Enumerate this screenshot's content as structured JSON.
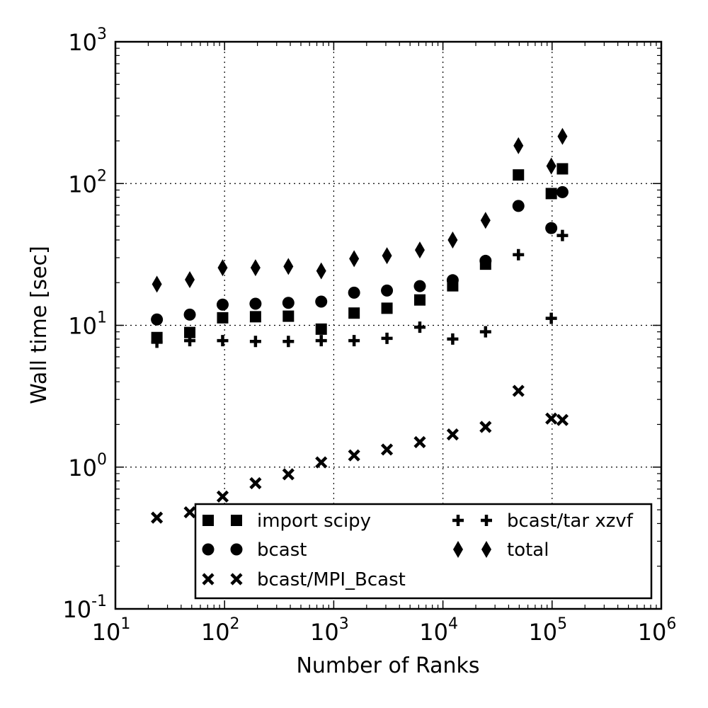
{
  "chart_data": {
    "type": "scatter",
    "xlabel": "Number of Ranks",
    "ylabel": "Wall time [sec]",
    "xscale": "log",
    "yscale": "log",
    "xlim": [
      10,
      1000000
    ],
    "ylim": [
      0.1,
      1000
    ],
    "grid": true,
    "legend_position": "lower-right",
    "x_ticks": [
      {
        "base": "10",
        "exp": "1",
        "value": 10
      },
      {
        "base": "10",
        "exp": "2",
        "value": 100
      },
      {
        "base": "10",
        "exp": "3",
        "value": 1000
      },
      {
        "base": "10",
        "exp": "4",
        "value": 10000
      },
      {
        "base": "10",
        "exp": "5",
        "value": 100000
      },
      {
        "base": "10",
        "exp": "6",
        "value": 1000000
      }
    ],
    "y_ticks": [
      {
        "base": "10",
        "exp": "-1",
        "value": 0.1
      },
      {
        "base": "10",
        "exp": "0",
        "value": 1
      },
      {
        "base": "10",
        "exp": "1",
        "value": 10
      },
      {
        "base": "10",
        "exp": "2",
        "value": 100
      },
      {
        "base": "10",
        "exp": "3",
        "value": 1000
      }
    ],
    "series": [
      {
        "name": "import scipy",
        "marker": "square",
        "points": [
          [
            24,
            8.2
          ],
          [
            48,
            8.9
          ],
          [
            96,
            11.3
          ],
          [
            192,
            11.5
          ],
          [
            384,
            11.6
          ],
          [
            768,
            9.4
          ],
          [
            1536,
            12.2
          ],
          [
            3072,
            13.2
          ],
          [
            6144,
            15.1
          ],
          [
            12288,
            19.0
          ],
          [
            24576,
            27.0
          ],
          [
            49152,
            115
          ],
          [
            98304,
            85
          ],
          [
            124416,
            127
          ]
        ]
      },
      {
        "name": "bcast",
        "marker": "circle",
        "points": [
          [
            24,
            11.0
          ],
          [
            48,
            11.9
          ],
          [
            96,
            14.0
          ],
          [
            192,
            14.2
          ],
          [
            384,
            14.4
          ],
          [
            768,
            14.7
          ],
          [
            1536,
            17.0
          ],
          [
            3072,
            17.6
          ],
          [
            6144,
            18.9
          ],
          [
            12288,
            20.8
          ],
          [
            24576,
            28.5
          ],
          [
            49152,
            69.5
          ],
          [
            98304,
            48.5
          ],
          [
            124416,
            87
          ]
        ]
      },
      {
        "name": "bcast/MPI_Bcast",
        "marker": "x",
        "points": [
          [
            24,
            0.44
          ],
          [
            48,
            0.48
          ],
          [
            96,
            0.62
          ],
          [
            192,
            0.77
          ],
          [
            384,
            0.89
          ],
          [
            768,
            1.08
          ],
          [
            1536,
            1.21
          ],
          [
            3072,
            1.33
          ],
          [
            6144,
            1.5
          ],
          [
            12288,
            1.7
          ],
          [
            24576,
            1.92
          ],
          [
            49152,
            3.45
          ],
          [
            98304,
            2.2
          ],
          [
            124416,
            2.15
          ]
        ]
      },
      {
        "name": "bcast/tar xzvf",
        "marker": "plus",
        "points": [
          [
            24,
            7.6
          ],
          [
            48,
            7.8
          ],
          [
            96,
            7.8
          ],
          [
            192,
            7.7
          ],
          [
            384,
            7.7
          ],
          [
            768,
            7.8
          ],
          [
            1536,
            7.8
          ],
          [
            3072,
            8.1
          ],
          [
            6144,
            9.7
          ],
          [
            12288,
            8.0
          ],
          [
            24576,
            9.0
          ],
          [
            49152,
            31.5
          ],
          [
            98304,
            11.2
          ],
          [
            124416,
            43
          ]
        ]
      },
      {
        "name": "total",
        "marker": "diamond",
        "points": [
          [
            24,
            19.5
          ],
          [
            48,
            21.0
          ],
          [
            96,
            25.5
          ],
          [
            192,
            25.5
          ],
          [
            384,
            26.0
          ],
          [
            768,
            24.2
          ],
          [
            1536,
            29.5
          ],
          [
            3072,
            31.0
          ],
          [
            6144,
            34.0
          ],
          [
            12288,
            40.0
          ],
          [
            24576,
            55.0
          ],
          [
            49152,
            185
          ],
          [
            98304,
            133
          ],
          [
            124416,
            215
          ]
        ]
      }
    ],
    "legend": {
      "columns": [
        [
          "import scipy",
          "bcast",
          "bcast/MPI_Bcast"
        ],
        [
          "bcast/tar xzvf",
          "total"
        ]
      ]
    }
  }
}
